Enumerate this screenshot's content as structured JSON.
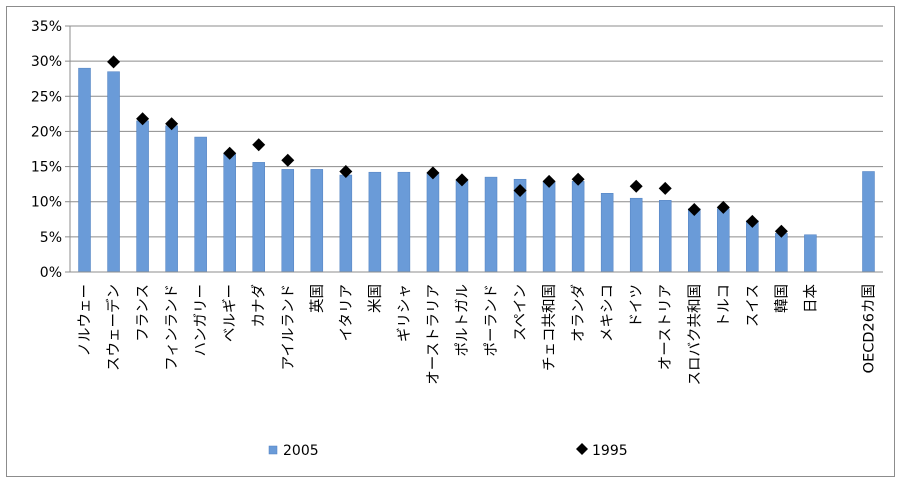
{
  "chart_data": {
    "type": "bar",
    "categories": [
      "ノルウェー",
      "スウェーデン",
      "フランス",
      "フィンランド",
      "ハンガリー",
      "ベルギー",
      "カナダ",
      "アイルランド",
      "英国",
      "イタリア",
      "米国",
      "ギリシャ",
      "オーストラリア",
      "ポルトガル",
      "ポーランド",
      "スペイン",
      "チェコ共和国",
      "オランダ",
      "メキシコ",
      "ドイツ",
      "オーストリア",
      "スロバク共和国",
      "トルコ",
      "スイス",
      "韓国",
      "日本",
      "",
      "OECD26カ国"
    ],
    "series": [
      {
        "name": "2005",
        "kind": "bar",
        "color": "#6a9bd8",
        "values": [
          29.0,
          28.5,
          21.5,
          20.8,
          19.2,
          16.8,
          15.6,
          14.6,
          14.6,
          13.8,
          14.2,
          14.2,
          14.0,
          13.0,
          13.5,
          13.2,
          12.8,
          12.9,
          11.2,
          10.5,
          10.2,
          9.0,
          9.0,
          7.3,
          5.5,
          5.3,
          null,
          14.3
        ]
      },
      {
        "name": "1995",
        "kind": "marker",
        "color": "#000000",
        "values": [
          null,
          29.9,
          21.8,
          21.1,
          null,
          16.9,
          18.1,
          15.9,
          null,
          14.3,
          null,
          null,
          14.1,
          13.1,
          null,
          11.6,
          12.9,
          13.2,
          null,
          12.2,
          11.9,
          8.9,
          9.2,
          7.2,
          5.8,
          null,
          null,
          null
        ]
      }
    ],
    "ylim": [
      0,
      35
    ],
    "yticks": [
      "0%",
      "5%",
      "10%",
      "15%",
      "20%",
      "25%",
      "30%",
      "35%"
    ],
    "grid": true,
    "legend_position": "bottom"
  }
}
